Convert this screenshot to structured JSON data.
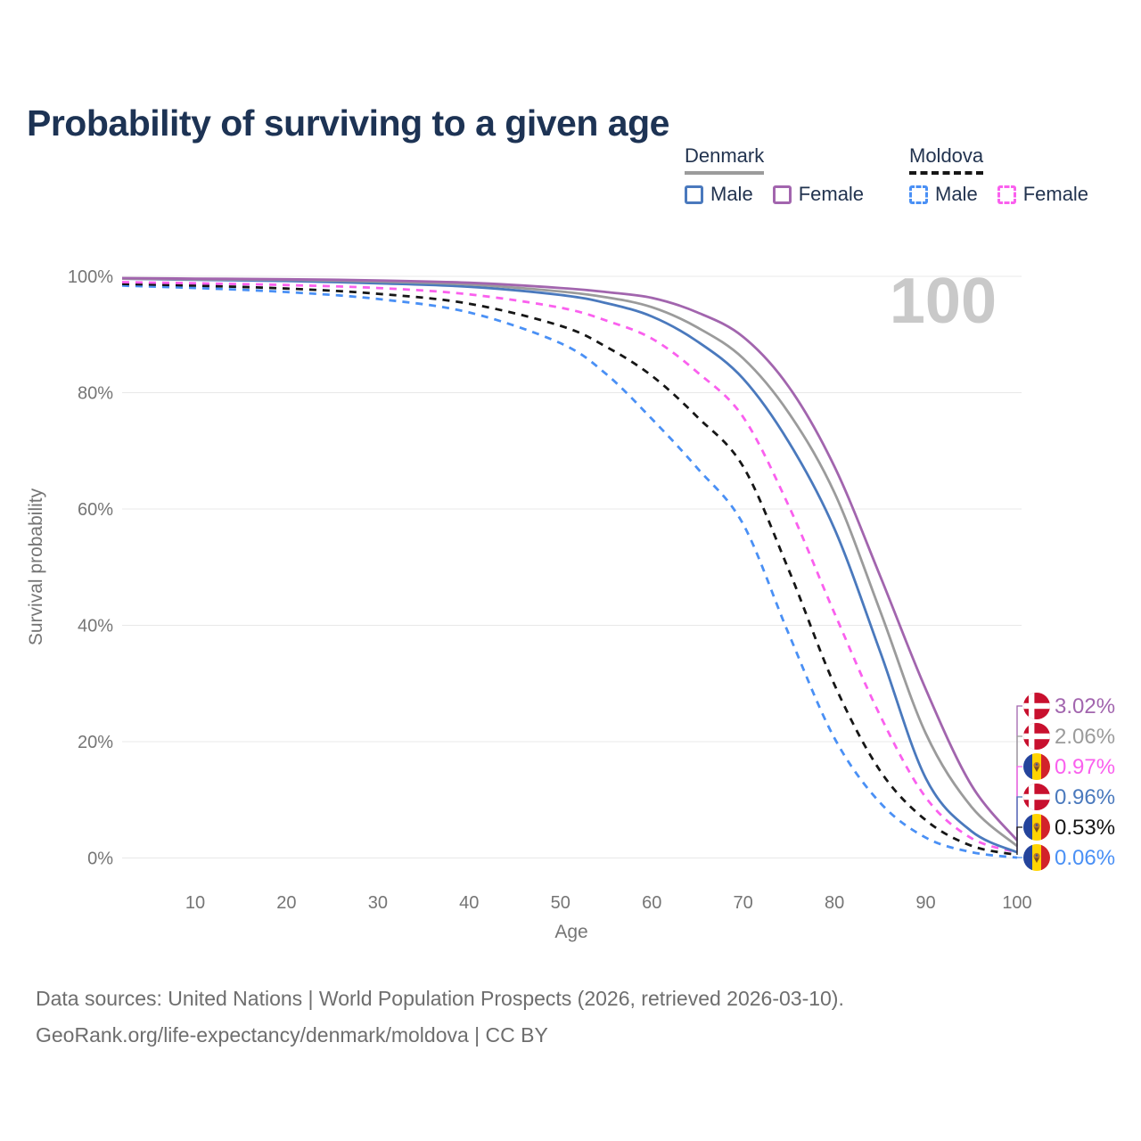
{
  "header": {
    "title": "Probability of surviving to a given age"
  },
  "legend": {
    "groups": [
      {
        "key": "denmark",
        "name": "Denmark",
        "line_style": "solid",
        "underline_color": "#9b9b9b",
        "items": [
          {
            "key": "male",
            "label": "Male",
            "color": "#4a79bd",
            "dashed": false
          },
          {
            "key": "female",
            "label": "Female",
            "color": "#a265ae",
            "dashed": false
          }
        ]
      },
      {
        "key": "moldova",
        "name": "Moldova",
        "line_style": "dashed",
        "underline_color": "#161616",
        "items": [
          {
            "key": "male",
            "label": "Male",
            "color": "#4a90f5",
            "dashed": true
          },
          {
            "key": "female",
            "label": "Female",
            "color": "#fa60ee",
            "dashed": true
          }
        ]
      }
    ]
  },
  "chart_data": {
    "type": "line",
    "title": "Probability of surviving to a given age",
    "xlabel": "Age",
    "ylabel": "Survival probability",
    "watermark": "100",
    "xlim": [
      2,
      100
    ],
    "ylim": [
      0,
      100
    ],
    "grid": "horizontal",
    "legend_position": "top-right",
    "x_ticks": [
      {
        "value": 10,
        "label": "10"
      },
      {
        "value": 20,
        "label": "20"
      },
      {
        "value": 30,
        "label": "30"
      },
      {
        "value": 40,
        "label": "40"
      },
      {
        "value": 50,
        "label": "50"
      },
      {
        "value": 60,
        "label": "60"
      },
      {
        "value": 70,
        "label": "70"
      },
      {
        "value": 80,
        "label": "80"
      },
      {
        "value": 90,
        "label": "90"
      },
      {
        "value": 100,
        "label": "100"
      }
    ],
    "y_ticks": [
      {
        "value": 0,
        "label": "0%"
      },
      {
        "value": 20,
        "label": "20%"
      },
      {
        "value": 40,
        "label": "40%"
      },
      {
        "value": 60,
        "label": "60%"
      },
      {
        "value": 80,
        "label": "80%"
      },
      {
        "value": 100,
        "label": "100%"
      }
    ],
    "ages": [
      2,
      10,
      20,
      30,
      40,
      50,
      55,
      60,
      65,
      70,
      75,
      80,
      85,
      90,
      95,
      100
    ],
    "series": [
      {
        "key": "moldova-male",
        "name": "Moldova Male",
        "country": "Moldova",
        "country_key": "moldova",
        "sex": "Male",
        "color": "#4a90f5",
        "dashed": true,
        "end_label": "0.06%",
        "values": [
          98.4,
          98.0,
          97.3,
          96.1,
          93.8,
          88.5,
          83.2,
          75.5,
          67.0,
          57.4,
          38.5,
          20.6,
          9.5,
          3.5,
          1.0,
          0.06
        ]
      },
      {
        "key": "moldova-both",
        "name": "Moldova (both sexes)",
        "country": "Moldova",
        "country_key": "moldova",
        "sex": "Both sexes",
        "color": "#161616",
        "dashed": true,
        "end_label": "0.53%",
        "values": [
          98.7,
          98.4,
          97.9,
          97.0,
          95.3,
          91.5,
          87.9,
          82.9,
          75.8,
          67.3,
          49.5,
          29.8,
          15.0,
          6.5,
          2.1,
          0.53
        ]
      },
      {
        "key": "moldova-female",
        "name": "Moldova Female",
        "country": "Moldova",
        "country_key": "moldova",
        "sex": "Female",
        "color": "#fa60ee",
        "dashed": true,
        "end_label": "0.97%",
        "values": [
          99.0,
          98.8,
          98.5,
          98.0,
          96.9,
          94.6,
          92.4,
          89.3,
          83.5,
          75.8,
          60.5,
          42.1,
          24.5,
          10.4,
          3.4,
          0.97
        ]
      },
      {
        "key": "denmark-male",
        "name": "Denmark Male",
        "country": "Denmark",
        "country_key": "denmark",
        "sex": "Male",
        "color": "#4a79bd",
        "dashed": false,
        "end_label": "0.96%",
        "values": [
          99.6,
          99.4,
          99.2,
          98.8,
          98.2,
          96.8,
          95.4,
          93.1,
          88.8,
          82.4,
          71.5,
          56.6,
          35.5,
          13.7,
          4.6,
          0.96
        ]
      },
      {
        "key": "denmark-both",
        "name": "Denmark (both sexes)",
        "country": "Denmark",
        "country_key": "denmark",
        "sex": "Both sexes",
        "color": "#9b9b9b",
        "dashed": false,
        "end_label": "2.06%",
        "values": [
          99.6,
          99.5,
          99.4,
          99.1,
          98.6,
          97.4,
          96.4,
          94.7,
          91.2,
          85.9,
          76.5,
          62.8,
          42.5,
          21.4,
          8.8,
          2.06
        ]
      },
      {
        "key": "denmark-female",
        "name": "Denmark Female",
        "country": "Denmark",
        "country_key": "denmark",
        "sex": "Female",
        "color": "#a265ae",
        "dashed": false,
        "end_label": "3.02%",
        "values": [
          99.7,
          99.6,
          99.5,
          99.3,
          98.9,
          98.0,
          97.3,
          96.3,
          93.8,
          89.6,
          81.0,
          67.3,
          48.5,
          29.0,
          12.5,
          3.02
        ]
      }
    ],
    "flag_colors": {
      "denmark": {
        "red": "#c8102e",
        "white": "#ffffff"
      },
      "moldova": {
        "blue": "#24449c",
        "yellow": "#ffd400",
        "red": "#d2232a",
        "emblem": "#b97b2a"
      }
    }
  },
  "footer": {
    "line1": "Data sources: United Nations | World Population Prospects (2026, retrieved 2026-03-10).",
    "line2": "GeoRank.org/life-expectancy/denmark/moldova | CC BY"
  }
}
